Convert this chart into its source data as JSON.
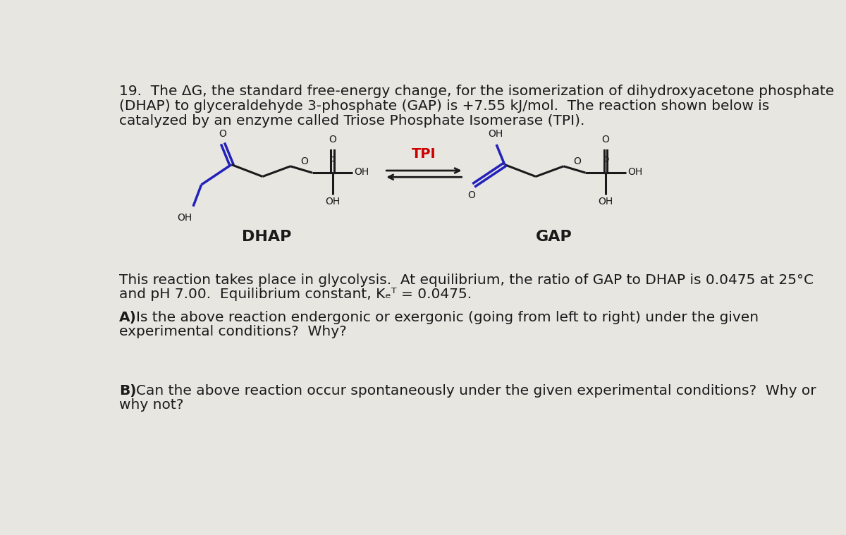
{
  "background_color": "#e8e6e1",
  "text_color": "#1a1a1a",
  "blue_color": "#2222bb",
  "red_color": "#cc0000",
  "black_color": "#1a1a1a",
  "intro_line1": "19.  The ΔG, the standard free-energy change, for the isomerization of dihydroxyacetone phosphate",
  "intro_line2": "(DHAP) to glyceraldehyde 3-phosphate (GAP) is +7.55 kJ/mol.  The reaction shown below is",
  "intro_line3": "catalyzed by an enzyme called Triose Phosphate Isomerase (TPI).",
  "tpi_label": "TPI",
  "dhap_label": "DHAP",
  "gap_label": "GAP",
  "para_line1": "This reaction takes place in glycolysis.  At equilibrium, the ratio of GAP to DHAP is 0.0475 at 25°C",
  "para_line2": "and pH 7.00.  Equilibrium constant, Kₑᵀ = 0.0475.",
  "qa_bold": "A)",
  "qa_rest": " Is the above reaction endergonic or exergonic (going from left to right) under the given",
  "qa_line2": "experimental conditions?  Why?",
  "qb_bold": "B)",
  "qb_rest": " Can the above reaction occur spontaneously under the given experimental conditions?  Why or",
  "qb_line2": "why not?",
  "font_size": 14.5
}
